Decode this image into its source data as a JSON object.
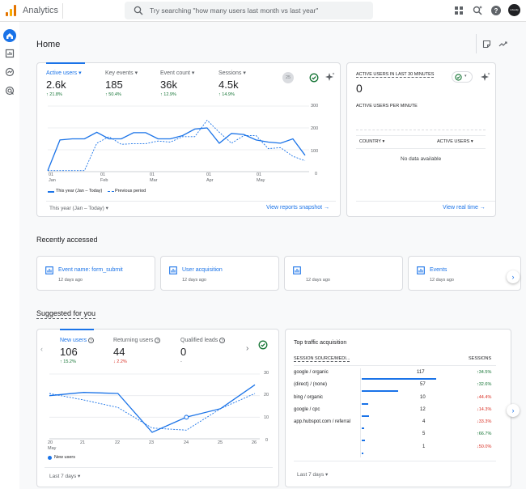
{
  "app": {
    "title": "Analytics"
  },
  "search": {
    "placeholder": "Try searching \"how many users last month vs last year\""
  },
  "avatar": {
    "text": "robustly"
  },
  "page": {
    "title": "Home"
  },
  "overview": {
    "metrics": [
      {
        "label": "Active users",
        "value": "2.6k",
        "change": "↑ 21.8%"
      },
      {
        "label": "Key events",
        "value": "185",
        "change": "↑ 50.4%"
      },
      {
        "label": "Event count",
        "value": "36k",
        "change": "↑ 12.9%"
      },
      {
        "label": "Sessions",
        "value": "4.5k",
        "change": "↑ 14.9%"
      }
    ],
    "badge": "25",
    "yticks": [
      "300",
      "200",
      "100",
      "0"
    ],
    "xticks": [
      [
        "01",
        "Jan"
      ],
      [
        "01",
        "Feb"
      ],
      [
        "01",
        "Mar"
      ],
      [
        "01",
        "Apr"
      ],
      [
        "01",
        "May"
      ]
    ],
    "legend_current": "This year (Jan – Today)",
    "legend_previous": "Previous period",
    "date_range": "This year (Jan – Today)",
    "link": "View reports snapshot"
  },
  "realtime": {
    "title": "ACTIVE USERS IN LAST 30 MINUTES",
    "value": "0",
    "subtitle": "ACTIVE USERS PER MINUTE",
    "col_country": "COUNTRY",
    "col_users": "ACTIVE USERS",
    "empty": "No data available",
    "link": "View real time"
  },
  "recent": {
    "title": "Recently accessed",
    "items": [
      {
        "label": "Event name: form_submit",
        "date": "12 days ago"
      },
      {
        "label": "User acquisition",
        "date": "12 days ago"
      },
      {
        "label": "",
        "date": "12 days ago"
      },
      {
        "label": "Events",
        "date": "12 days ago"
      }
    ]
  },
  "suggested": {
    "title": "Suggested for you",
    "metrics": [
      {
        "label": "New users",
        "value": "106",
        "change": "↑ 15.2%"
      },
      {
        "label": "Returning users",
        "value": "44",
        "change": "↓ 2.2%"
      },
      {
        "label": "Qualified leads",
        "value": "0",
        "change": "-"
      }
    ],
    "yticks": [
      "30",
      "20",
      "10",
      "0"
    ],
    "xticks": [
      "20",
      "21",
      "22",
      "23",
      "24",
      "25",
      "26"
    ],
    "xmonth": "May",
    "legend": "New users",
    "date_range": "Last 7 days"
  },
  "traffic": {
    "title": "Top traffic acquisition",
    "col_source": "SESSION SOURCE/MEDI...",
    "col_sessions": "SESSIONS",
    "rows": [
      {
        "source": "google / organic",
        "sessions": "117",
        "change": "↑34.5%",
        "dir": "up"
      },
      {
        "source": "(direct) / (none)",
        "sessions": "57",
        "change": "↑32.6%",
        "dir": "up"
      },
      {
        "source": "bing / organic",
        "sessions": "10",
        "change": "↓44.4%",
        "dir": "down"
      },
      {
        "source": "google / cpc",
        "sessions": "12",
        "change": "↓14.3%",
        "dir": "down"
      },
      {
        "source": "app.hubspot.com / referral",
        "sessions": "4",
        "change": "↓33.3%",
        "dir": "down"
      },
      {
        "source": "",
        "sessions": "5",
        "change": "↑66.7%",
        "dir": "up"
      },
      {
        "source": "",
        "sessions": "1",
        "change": "↓50.0%",
        "dir": "down"
      }
    ],
    "date_range": "Last 7 days"
  },
  "colors": {
    "accent": "#1a73e8",
    "up": "#137333",
    "down": "#d93025"
  },
  "chart_data": [
    {
      "type": "line",
      "x": [
        "Jan 01",
        "Jan 08",
        "Jan 15",
        "Jan 22",
        "Jan 29",
        "Feb 05",
        "Feb 12",
        "Feb 19",
        "Feb 26",
        "Mar 05",
        "Mar 12",
        "Mar 19",
        "Mar 26",
        "Apr 02",
        "Apr 09",
        "Apr 16",
        "Apr 23",
        "Apr 30",
        "May 07",
        "May 14",
        "May 21",
        "May 28"
      ],
      "series": [
        {
          "name": "This year (Jan – Today)",
          "values": [
            5,
            145,
            150,
            150,
            180,
            150,
            150,
            178,
            178,
            150,
            150,
            165,
            195,
            200,
            130,
            175,
            170,
            145,
            135,
            130,
            150,
            75
          ]
        },
        {
          "name": "Previous period",
          "values": [
            5,
            5,
            5,
            5,
            130,
            160,
            125,
            128,
            128,
            140,
            135,
            160,
            160,
            235,
            180,
            130,
            165,
            165,
            105,
            110,
            70,
            50
          ]
        }
      ],
      "ylim": [
        0,
        300
      ]
    },
    {
      "type": "line",
      "x": [
        "May 20",
        "May 21",
        "May 22",
        "May 23",
        "May 24",
        "May 25",
        "May 26"
      ],
      "series": [
        {
          "name": "New users",
          "values": [
            20,
            21.5,
            21,
            3,
            10,
            14,
            25
          ]
        },
        {
          "values": [
            21,
            18,
            14.5,
            5,
            4,
            14,
            21
          ]
        }
      ],
      "ylim": [
        0,
        30
      ]
    }
  ]
}
